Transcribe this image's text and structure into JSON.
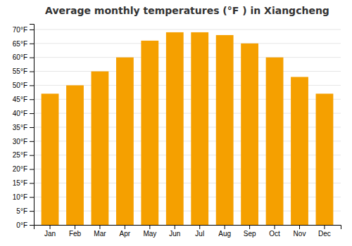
{
  "chart_data": {
    "type": "bar",
    "title": "Average monthly temperatures (°F ) in Xiangcheng",
    "categories": [
      "Jan",
      "Feb",
      "Mar",
      "Apr",
      "May",
      "Jun",
      "Jul",
      "Aug",
      "Sep",
      "Oct",
      "Nov",
      "Dec"
    ],
    "values": [
      47,
      50,
      55,
      60,
      66,
      69,
      69,
      68,
      65,
      60,
      53,
      47
    ],
    "color": "#F5A000",
    "ylim": [
      0,
      72
    ],
    "yticks": [
      {
        "value": 0,
        "label": "0°F"
      },
      {
        "value": 5,
        "label": "5°F"
      },
      {
        "value": 10,
        "label": "10°F"
      },
      {
        "value": 15,
        "label": "15°F"
      },
      {
        "value": 20,
        "label": "20°F"
      },
      {
        "value": 25,
        "label": "25°F"
      },
      {
        "value": 30,
        "label": "30°F"
      },
      {
        "value": 35,
        "label": "35°F"
      },
      {
        "value": 40,
        "label": "40°F"
      },
      {
        "value": 45,
        "label": "45°F"
      },
      {
        "value": 50,
        "label": "50°F"
      },
      {
        "value": 55,
        "label": "55°F"
      },
      {
        "value": 60,
        "label": "60°F"
      },
      {
        "value": 65,
        "label": "65°F"
      },
      {
        "value": 70,
        "label": "70°F"
      }
    ],
    "grid": true
  }
}
